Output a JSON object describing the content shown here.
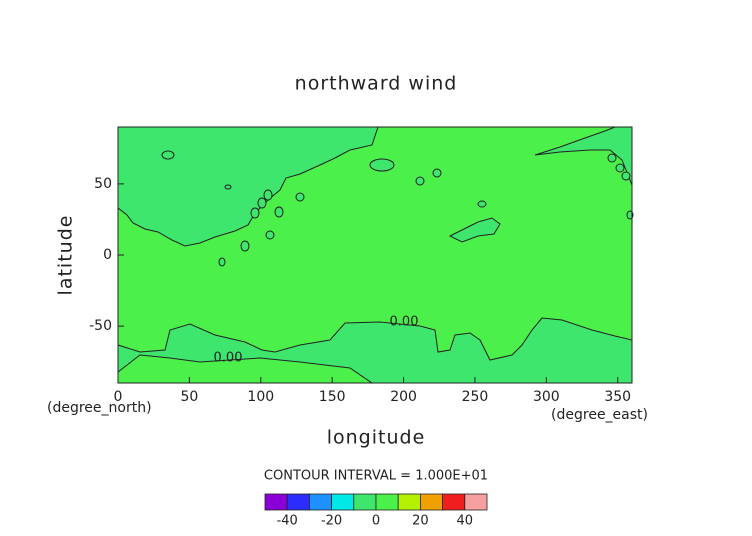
{
  "chart_data": {
    "type": "contour",
    "title": "northward wind",
    "xlabel": "longitude",
    "ylabel": "latitude",
    "xunit": "(degree_east)",
    "yunit": "(degree_north)",
    "xlim": [
      0,
      360
    ],
    "ylim": [
      -90,
      90
    ],
    "xticks": [
      0,
      50,
      100,
      150,
      200,
      250,
      300,
      350
    ],
    "yticks": [
      -50,
      0,
      50
    ],
    "contour_levels": [
      0
    ],
    "value_labels": [
      "0.00"
    ],
    "contour_interval_text": "CONTOUR INTERVAL = 1.000E+01",
    "colorbar": {
      "bins": [
        -50,
        -40,
        -30,
        -20,
        -10,
        0,
        10,
        20,
        30,
        40,
        50
      ],
      "colors": [
        "#8a00d6",
        "#2c2cff",
        "#1e90ff",
        "#00e8e8",
        "#3ee66e",
        "#4cf04a",
        "#b4f000",
        "#f0a000",
        "#f01e1e",
        "#f4a0a0"
      ],
      "ticks": [
        -40,
        -20,
        0,
        20,
        40
      ]
    }
  }
}
